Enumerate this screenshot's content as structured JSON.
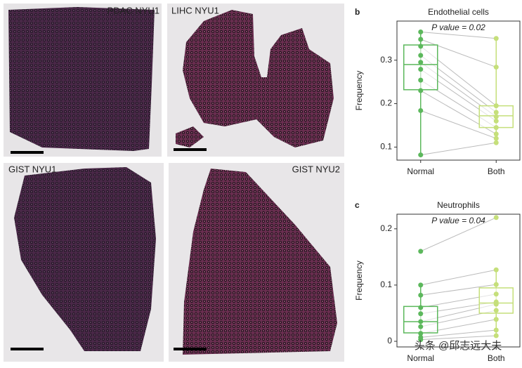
{
  "images": [
    {
      "label": "PDAC NYU1"
    },
    {
      "label": "LIHC NYU1"
    },
    {
      "label": "GIST NYU1"
    },
    {
      "label": "GIST NYU2"
    }
  ],
  "chart_data": [
    {
      "type": "box",
      "panel": "b",
      "title": "Endothelial cells",
      "annotation": "P value = 0.02",
      "ylabel": "Frequency",
      "categories": [
        "Normal",
        "Both"
      ],
      "ylim": [
        0.07,
        0.39
      ],
      "yticks": [
        0.1,
        0.2,
        0.3
      ],
      "series": [
        {
          "name": "Normal",
          "color": "#5cb85c",
          "values": [
            0.365,
            0.348,
            0.332,
            0.311,
            0.295,
            0.279,
            0.254,
            0.23,
            0.184,
            0.082
          ],
          "box": {
            "q1": 0.232,
            "median": 0.29,
            "q3": 0.335,
            "whisker_low": 0.082,
            "whisker_high": 0.365
          }
        },
        {
          "name": "Both",
          "color": "#c5df7a",
          "values": [
            0.35,
            0.284,
            0.195,
            0.18,
            0.17,
            0.16,
            0.145,
            0.13,
            0.12,
            0.11
          ],
          "box": {
            "q1": 0.145,
            "median": 0.172,
            "q3": 0.195,
            "whisker_low": 0.11,
            "whisker_high": 0.35
          }
        }
      ]
    },
    {
      "type": "box",
      "panel": "c",
      "title": "Neutrophils",
      "annotation": "P value = 0.04",
      "ylabel": "Frequency",
      "categories": [
        "Normal",
        "Both"
      ],
      "ylim": [
        -0.01,
        0.226
      ],
      "yticks": [
        0,
        0.1,
        0.2
      ],
      "series": [
        {
          "name": "Normal",
          "color": "#5cb85c",
          "values": [
            0.16,
            0.1,
            0.082,
            0.06,
            0.049,
            0.035,
            0.026,
            0.014,
            0.007,
            0.003
          ],
          "box": {
            "q1": 0.015,
            "median": 0.035,
            "q3": 0.062,
            "whisker_low": 0.003,
            "whisker_high": 0.1
          }
        },
        {
          "name": "Both",
          "color": "#c5df7a",
          "values": [
            0.22,
            0.127,
            0.101,
            0.084,
            0.07,
            0.066,
            0.055,
            0.039,
            0.02,
            0.01
          ],
          "box": {
            "q1": 0.05,
            "median": 0.068,
            "q3": 0.095,
            "whisker_low": 0.01,
            "whisker_high": 0.127
          }
        }
      ]
    }
  ],
  "watermark": "头条 @邱志远大夫"
}
